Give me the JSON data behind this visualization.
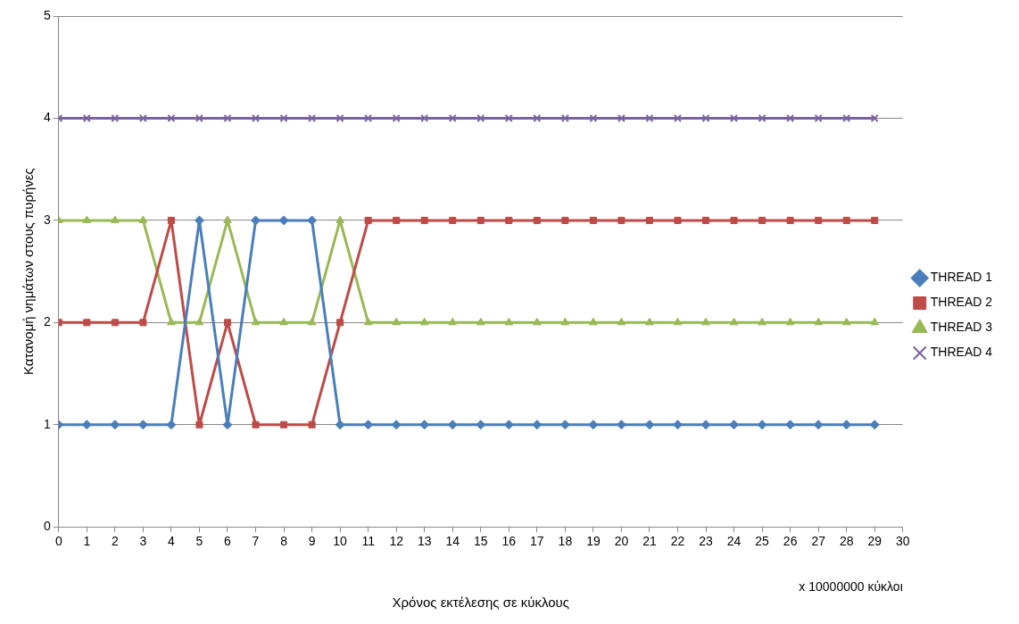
{
  "chart_data": {
    "type": "line",
    "xlabel": "Χρόνος εκτέλεσης σε κύκλους",
    "ylabel": "Κατανομή νημάτων στους πυρήνες",
    "annotations": [
      "x 10000000 κύκλοι"
    ],
    "x": [
      0,
      1,
      2,
      3,
      4,
      5,
      6,
      7,
      8,
      9,
      10,
      11,
      12,
      13,
      14,
      15,
      16,
      17,
      18,
      19,
      20,
      21,
      22,
      23,
      24,
      25,
      26,
      27,
      28,
      29
    ],
    "xlim": [
      0,
      30
    ],
    "xticks": [
      0,
      1,
      2,
      3,
      4,
      5,
      6,
      7,
      8,
      9,
      10,
      11,
      12,
      13,
      14,
      15,
      16,
      17,
      18,
      19,
      20,
      21,
      22,
      23,
      24,
      25,
      26,
      27,
      28,
      29,
      30
    ],
    "ylim": [
      0,
      5
    ],
    "yticks": [
      0,
      1,
      2,
      3,
      4,
      5
    ],
    "grid": "y",
    "legend": "right",
    "line_style": "solid",
    "series": [
      {
        "name": "THREAD 1",
        "color": "#4a7ebb",
        "marker": "diamond",
        "values": [
          1,
          1,
          1,
          1,
          1,
          3,
          1,
          3,
          3,
          3,
          1,
          1,
          1,
          1,
          1,
          1,
          1,
          1,
          1,
          1,
          1,
          1,
          1,
          1,
          1,
          1,
          1,
          1,
          1,
          1
        ]
      },
      {
        "name": "THREAD 2",
        "color": "#be4b48",
        "marker": "square",
        "values": [
          2,
          2,
          2,
          2,
          3,
          1,
          2,
          1,
          1,
          1,
          2,
          3,
          3,
          3,
          3,
          3,
          3,
          3,
          3,
          3,
          3,
          3,
          3,
          3,
          3,
          3,
          3,
          3,
          3,
          3
        ]
      },
      {
        "name": "THREAD 3",
        "color": "#98b954",
        "marker": "triangle",
        "values": [
          3,
          3,
          3,
          3,
          2,
          2,
          3,
          2,
          2,
          2,
          3,
          2,
          2,
          2,
          2,
          2,
          2,
          2,
          2,
          2,
          2,
          2,
          2,
          2,
          2,
          2,
          2,
          2,
          2,
          2
        ]
      },
      {
        "name": "THREAD 4",
        "color": "#7d60a0",
        "marker": "cross",
        "values": [
          4,
          4,
          4,
          4,
          4,
          4,
          4,
          4,
          4,
          4,
          4,
          4,
          4,
          4,
          4,
          4,
          4,
          4,
          4,
          4,
          4,
          4,
          4,
          4,
          4,
          4,
          4,
          4,
          4,
          4
        ]
      }
    ]
  }
}
